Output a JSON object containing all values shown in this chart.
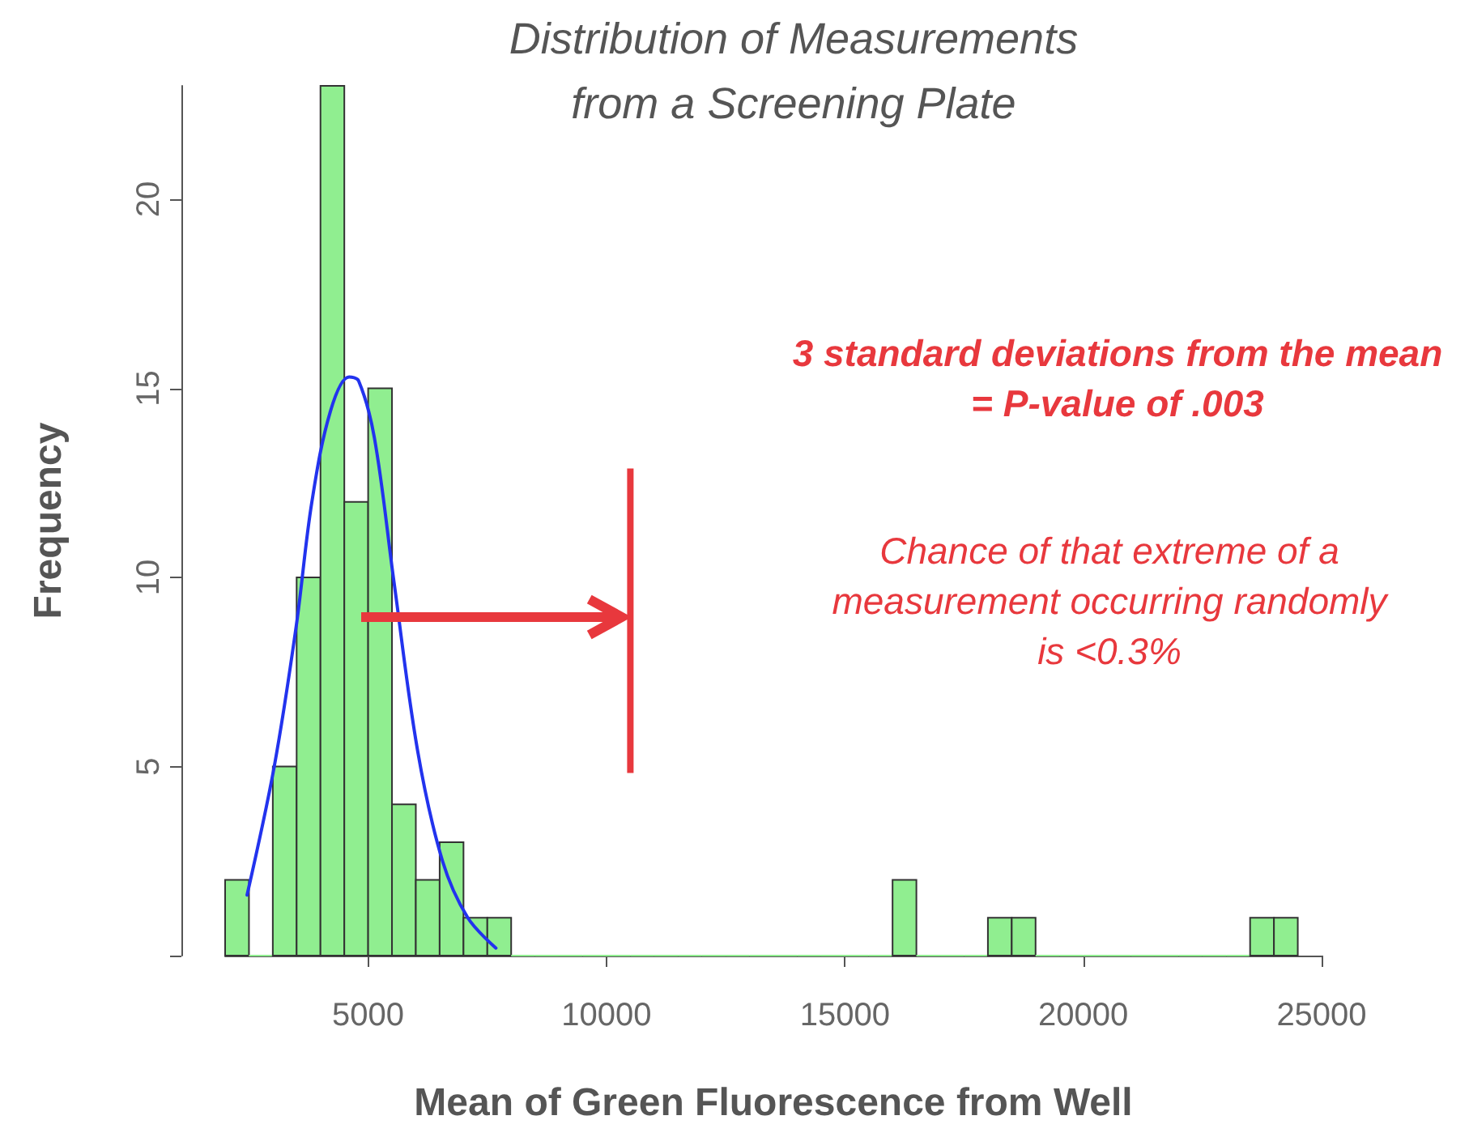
{
  "chart_data": {
    "type": "histogram",
    "title": "Distribution of Measurements\nfrom a Screening Plate",
    "xlabel": "Mean of Green Fluorescence from Well",
    "ylabel": "Frequency",
    "bins": [
      2000,
      2500,
      3000,
      3500,
      4000,
      4500,
      5000,
      5500,
      6000,
      6500,
      7000,
      7500,
      8000,
      8500,
      9000,
      9500,
      10000,
      10500,
      11000,
      11500,
      12000,
      12500,
      13000,
      13500,
      14000,
      14500,
      15000,
      15500,
      16000,
      16500,
      17000,
      17500,
      18000,
      18500,
      19000,
      19500,
      20000,
      20500,
      21000,
      21500,
      22000,
      22500,
      23000,
      23500,
      24000,
      24500
    ],
    "values": [
      2,
      0,
      5,
      10,
      23,
      12,
      15,
      4,
      2,
      3,
      1,
      1,
      0,
      0,
      0,
      0,
      0,
      0,
      0,
      0,
      0,
      0,
      0,
      0,
      0,
      0,
      0,
      0,
      2,
      0,
      0,
      0,
      1,
      1,
      0,
      0,
      0,
      0,
      0,
      0,
      0,
      0,
      0,
      1,
      1
    ],
    "color": "#90ee90",
    "series": [
      {
        "type": "line",
        "color": "#2233ee",
        "x": [
          2460,
          3030,
          3490,
          3820,
          4210,
          4600,
          4800,
          5130,
          5540,
          6040,
          6560,
          7090,
          7680
        ],
        "values": [
          1.6,
          5.0,
          8.7,
          12.0,
          14.4,
          15.3,
          15.2,
          13.7,
          9.9,
          5.4,
          2.5,
          1.0,
          0.2
        ]
      }
    ],
    "marker": "none",
    "xlim": [
      2000,
      25000
    ],
    "xticks": [
      5000,
      10000,
      15000,
      20000,
      25000
    ],
    "ylim": [
      0,
      23
    ],
    "yticks": [
      {
        "value": 0,
        "label": null
      },
      5,
      10,
      15,
      20
    ],
    "ref_lines": [
      {
        "axis": "x",
        "value": 10500,
        "color": "#e8383d"
      }
    ],
    "annotations": [
      "3 standard deviations from the mean = P-value of .003",
      "Chance of that extreme of a measurement occurring randomly is <0.3%"
    ],
    "grid": false
  }
}
